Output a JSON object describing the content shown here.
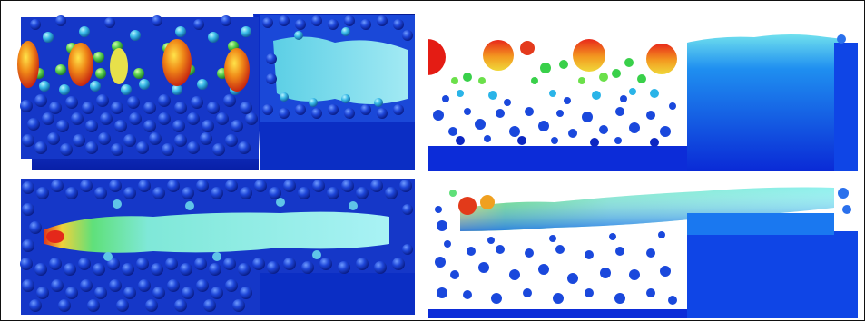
{
  "figure": {
    "panels": [
      {
        "id": "top-left",
        "content": "3d-particle-bed-render"
      },
      {
        "id": "top-right",
        "content": "2d-cross-section"
      },
      {
        "id": "bottom-left",
        "content": "3d-particle-bed-render"
      },
      {
        "id": "bottom-right",
        "content": "2d-cross-section"
      }
    ],
    "colormap": [
      "#0a22c8",
      "#1e6ff0",
      "#3fd6e8",
      "#5fe07a",
      "#e6e03a",
      "#f09a20",
      "#e0281a"
    ],
    "colors": {
      "background": "#ffffff",
      "frame": "#111111",
      "solid_block": "#0d2fd6",
      "particle_dark": "#0b24c4",
      "melt_pool_light": "#9ef0f2",
      "melt_pool_hot": "#e23a1a"
    }
  }
}
